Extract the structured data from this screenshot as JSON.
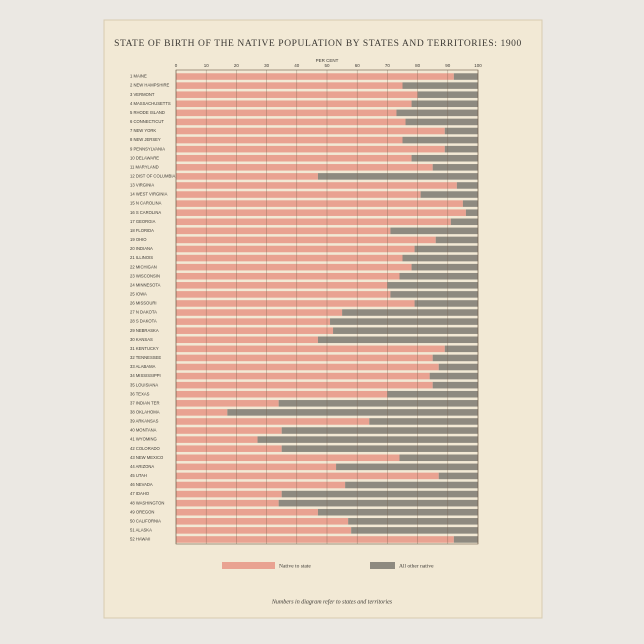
{
  "chart_data": {
    "type": "stacked_barh",
    "title": "STATE OF BIRTH OF THE NATIVE POPULATION BY STATES AND TERRITORIES: 1900",
    "xlabel": "PER CENT",
    "categories": [
      "1 MAINE",
      "2 NEW HAMPSHIRE",
      "3 VERMONT",
      "4 MASSACHUSETTS",
      "5 RHODE ISLAND",
      "6 CONNECTICUT",
      "7 NEW YORK",
      "8 NEW JERSEY",
      "9 PENNSYLVANIA",
      "10 DELAWARE",
      "11 MARYLAND",
      "12 DIST OF COLUMBIA",
      "13 VIRGINIA",
      "14 WEST VIRGINIA",
      "15 N CAROLINA",
      "16 S CAROLINA",
      "17 GEORGIA",
      "18 FLORIDA",
      "19 OHIO",
      "20 INDIANA",
      "21 ILLINOIS",
      "22 MICHIGAN",
      "23 WISCONSIN",
      "24 MINNESOTA",
      "25 IOWA",
      "26 MISSOURI",
      "27 N DAKOTA",
      "28 S DAKOTA",
      "29 NEBRASKA",
      "30 KANSAS",
      "31 KENTUCKY",
      "32 TENNESSEE",
      "33 ALABAMA",
      "34 MISSISSIPPI",
      "35 LOUISIANA",
      "36 TEXAS",
      "37 INDIAN TER",
      "38 OKLAHOMA",
      "39 ARKANSAS",
      "40 MONTANA",
      "41 WYOMING",
      "42 COLORADO",
      "43 NEW MEXICO",
      "44 ARIZONA",
      "45 UTAH",
      "46 NEVADA",
      "47 IDAHO",
      "48 WASHINGTON",
      "49 OREGON",
      "50 CALIFORNIA",
      "51 ALASKA",
      "52 HAWAII"
    ],
    "series": [
      {
        "name": "Native to state",
        "color": "#e9a291",
        "values": [
          92,
          75,
          80,
          78,
          73,
          76,
          89,
          75,
          89,
          78,
          85,
          47,
          93,
          81,
          95,
          96,
          91,
          71,
          86,
          79,
          75,
          78,
          74,
          70,
          71,
          79,
          55,
          51,
          52,
          47,
          89,
          85,
          87,
          84,
          85,
          70,
          34,
          17,
          64,
          35,
          27,
          35,
          74,
          53,
          87,
          56,
          35,
          34,
          47,
          57,
          58,
          92
        ]
      },
      {
        "name": "All other native",
        "color": "#8e8a80",
        "values": [
          8,
          25,
          20,
          22,
          27,
          24,
          11,
          25,
          11,
          22,
          15,
          53,
          7,
          19,
          5,
          4,
          9,
          29,
          14,
          21,
          25,
          22,
          26,
          30,
          29,
          21,
          45,
          49,
          48,
          53,
          11,
          15,
          13,
          16,
          15,
          30,
          66,
          83,
          36,
          65,
          73,
          65,
          26,
          47,
          13,
          44,
          65,
          66,
          53,
          43,
          42,
          8
        ]
      }
    ],
    "xlim": [
      0,
      100
    ],
    "xticks": [
      0,
      10,
      20,
      30,
      40,
      50,
      60,
      70,
      80,
      90,
      100
    ],
    "note": "Numbers in diagram refer to states and territories"
  }
}
